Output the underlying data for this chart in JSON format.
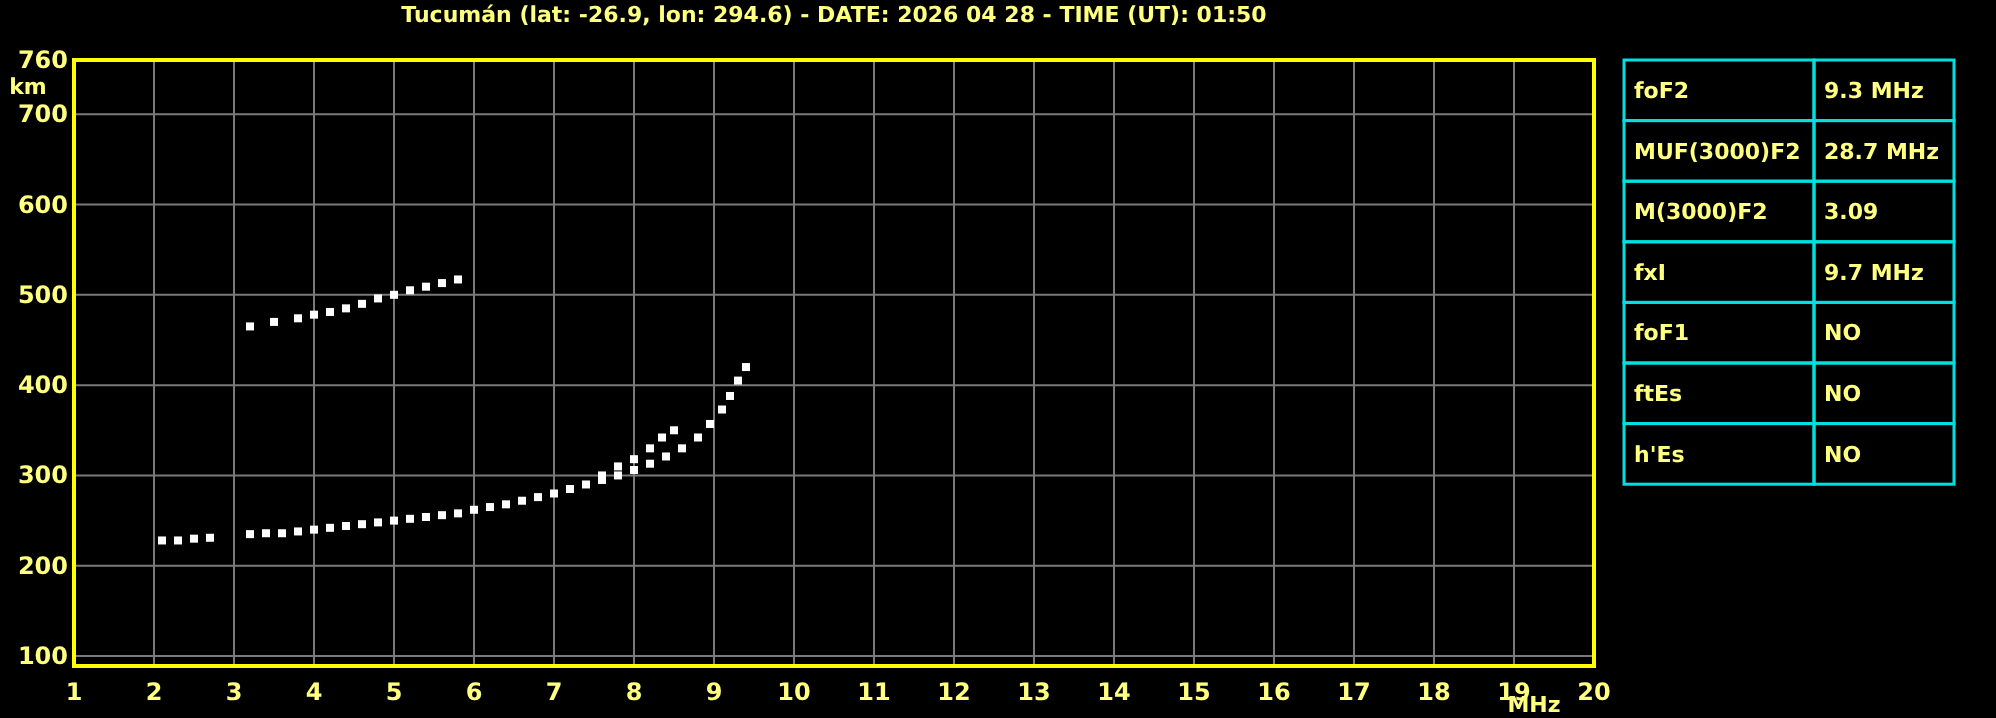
{
  "chart_data": [
    {
      "type": "scatter",
      "title": "Tucumán (lat: -26.9, lon: 294.6) - DATE: 2026 04 28 - TIME (UT): 01:50",
      "xlabel": "MHz",
      "ylabel": "km",
      "xlim": [
        1,
        20
      ],
      "ylim": [
        89,
        760
      ],
      "xticks": [
        1,
        2,
        3,
        4,
        5,
        6,
        7,
        8,
        9,
        10,
        11,
        12,
        13,
        14,
        15,
        16,
        17,
        18,
        19,
        20
      ],
      "yticks": [
        100,
        200,
        300,
        400,
        500,
        600,
        700,
        760
      ],
      "grid": true,
      "marker": "square",
      "series": [
        {
          "color": "#ffffff",
          "x": [
            2.1,
            2.3,
            2.5,
            2.7,
            3.2,
            3.4,
            3.6,
            3.8,
            4.0,
            4.2,
            4.4,
            4.6,
            4.8,
            5.0,
            5.2,
            5.4,
            5.6,
            5.8,
            6.0,
            6.2,
            6.4,
            6.6,
            6.8,
            7.0,
            7.2,
            7.4,
            7.6,
            7.8,
            8.0,
            8.2,
            8.4,
            8.6,
            8.8,
            8.95,
            9.1,
            9.2,
            9.3,
            9.4
          ],
          "values": [
            228,
            228,
            230,
            231,
            235,
            236,
            236,
            238,
            240,
            242,
            244,
            246,
            248,
            250,
            252,
            254,
            256,
            258,
            262,
            265,
            268,
            272,
            276,
            280,
            285,
            290,
            295,
            300,
            306,
            313,
            321,
            330,
            342,
            357,
            373,
            388,
            405,
            420
          ]
        },
        {
          "color": "#ffffff",
          "x": [
            7.6,
            7.8,
            8.0,
            8.2,
            8.35,
            8.5
          ],
          "values": [
            300,
            310,
            318,
            330,
            342,
            350
          ]
        },
        {
          "color": "#ffffff",
          "x": [
            3.2,
            3.5,
            3.8,
            4.0,
            4.2,
            4.4,
            4.6,
            4.8,
            5.0,
            5.2,
            5.4,
            5.6,
            5.8
          ],
          "values": [
            465,
            470,
            474,
            478,
            481,
            485,
            490,
            496,
            500,
            505,
            509,
            513,
            517
          ]
        }
      ]
    },
    {
      "type": "other",
      "categories": [
        "foF2",
        "MUF(3000)F2",
        "M(3000)F2",
        "fxI",
        "foF1",
        "ftEs",
        "h'Es"
      ],
      "value_labels": [
        "9.3 MHz",
        "28.7 MHz",
        "3.09",
        "9.7 MHz",
        "NO",
        "NO",
        "NO"
      ]
    }
  ]
}
